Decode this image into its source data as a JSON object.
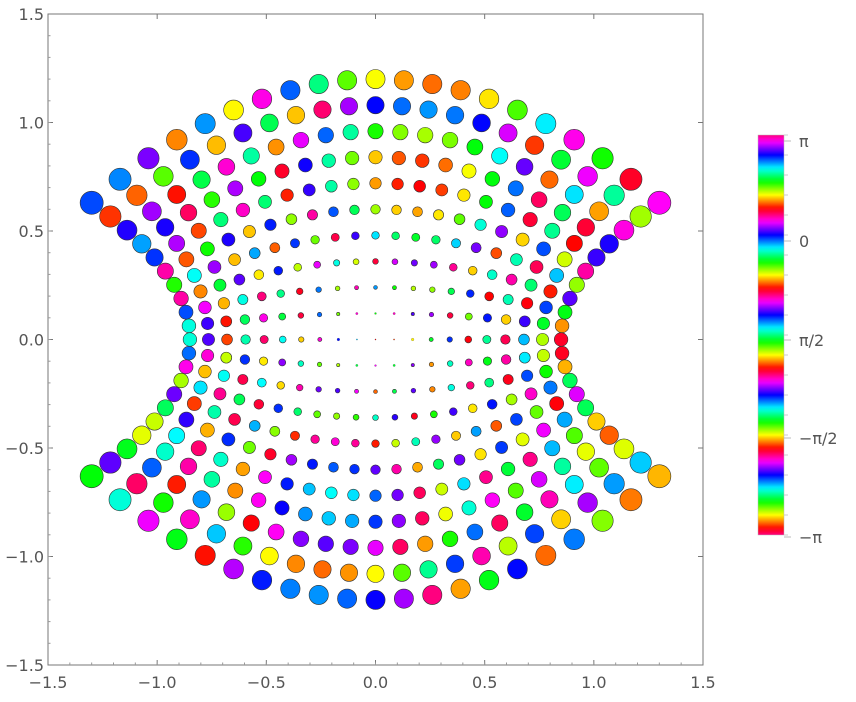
{
  "chart_data": {
    "type": "scatter",
    "title": "",
    "xlabel": "",
    "ylabel": "",
    "xlim": [
      -1.5,
      1.5
    ],
    "ylim": [
      -1.5,
      1.5
    ],
    "x_ticks": [
      "−1.5",
      "−1.0",
      "−0.5",
      "0.0",
      "0.5",
      "1.0",
      "1.5"
    ],
    "y_ticks": [
      "−1.5",
      "−1.0",
      "−0.5",
      "0.0",
      "0.5",
      "1.0",
      "1.5"
    ],
    "grid": false,
    "marker": "disk, size grows with distance from origin, colored by phase",
    "colorbar": {
      "position": "right",
      "labels": [
        "π",
        "0",
        "π/2",
        "−π/2",
        "−π"
      ],
      "colormap": "cyclic hue (repeats ~5 times)"
    }
  }
}
